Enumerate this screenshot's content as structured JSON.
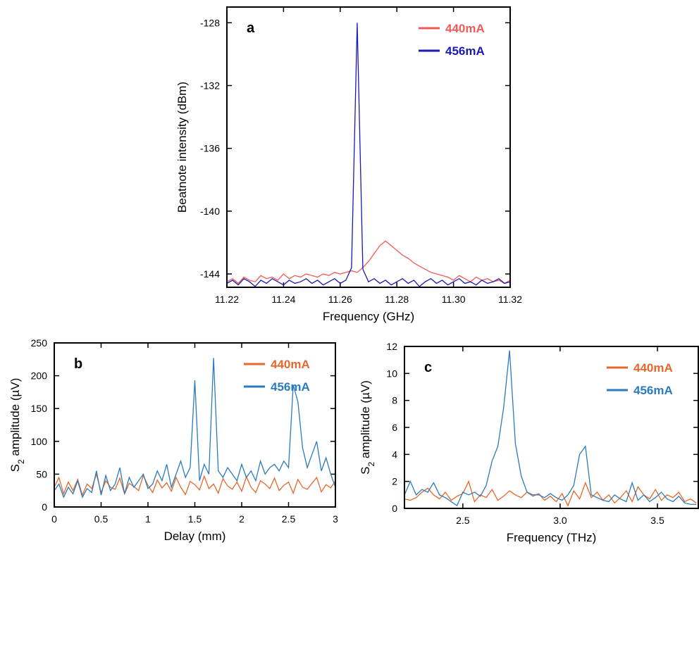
{
  "chart_data": [
    {
      "type": "line",
      "annotation": "a",
      "xlabel": "Frequency (GHz)",
      "ylabel": "Beatnote intensity (dBm)",
      "xlim": [
        11.22,
        11.32
      ],
      "ylim": [
        -144.85,
        -127
      ],
      "xticks": [
        11.22,
        11.24,
        11.26,
        11.28,
        {
          "value": 11.3,
          "label": "11.30"
        },
        11.32
      ],
      "yticks": [
        -128,
        -132,
        -136,
        -140,
        -144
      ],
      "x": [
        11.22,
        11.222,
        11.224,
        11.226,
        11.228,
        11.23,
        11.232,
        11.234,
        11.236,
        11.238,
        11.24,
        11.242,
        11.244,
        11.246,
        11.248,
        11.25,
        11.252,
        11.254,
        11.256,
        11.258,
        11.26,
        11.262,
        11.264,
        11.266,
        11.268,
        11.27,
        11.272,
        11.274,
        11.276,
        11.278,
        11.28,
        11.282,
        11.284,
        11.286,
        11.288,
        11.29,
        11.292,
        11.294,
        11.296,
        11.298,
        11.3,
        11.302,
        11.304,
        11.306,
        11.308,
        11.31,
        11.312,
        11.314,
        11.316,
        11.318,
        11.32
      ],
      "series": [
        {
          "name": "440mA",
          "color": "#f25a5a",
          "values": [
            -144.5,
            -144.3,
            -144.6,
            -144.2,
            -144.4,
            -144.5,
            -144.1,
            -144.3,
            -144.2,
            -144.4,
            -144.0,
            -144.3,
            -144.1,
            -144.2,
            -144.0,
            -144.1,
            -144.2,
            -144.0,
            -144.1,
            -143.9,
            -144.0,
            -143.9,
            -143.8,
            -143.9,
            -143.6,
            -143.2,
            -142.7,
            -142.2,
            -141.9,
            -142.2,
            -142.5,
            -142.8,
            -143.0,
            -143.3,
            -143.5,
            -143.7,
            -143.9,
            -144.0,
            -144.1,
            -144.2,
            -144.4,
            -144.1,
            -144.3,
            -144.5,
            -144.2,
            -144.4,
            -144.3,
            -144.5,
            -144.4,
            -144.6,
            -144.4
          ]
        },
        {
          "name": "456mA",
          "color": "#1a1ab0",
          "values": [
            -144.6,
            -144.4,
            -144.7,
            -144.3,
            -144.5,
            -144.8,
            -144.4,
            -144.6,
            -144.3,
            -144.5,
            -144.7,
            -144.4,
            -144.6,
            -144.5,
            -144.3,
            -144.6,
            -144.4,
            -144.7,
            -144.5,
            -144.3,
            -144.6,
            -144.4,
            -143.6,
            -128,
            -143.7,
            -144.5,
            -144.3,
            -144.6,
            -144.4,
            -144.7,
            -144.5,
            -144.3,
            -144.6,
            -144.4,
            -144.8,
            -144.5,
            -144.3,
            -144.6,
            -144.4,
            -144.7,
            -144.5,
            -144.3,
            -144.6,
            -144.5,
            -144.7,
            -144.4,
            -144.6,
            -144.5,
            -144.3,
            -144.6,
            -144.5
          ]
        }
      ]
    },
    {
      "type": "line",
      "annotation": "b",
      "xlabel": "Delay (mm)",
      "ylabel": [
        "S",
        "2",
        " amplitude (µV)"
      ],
      "xlim": [
        0,
        3
      ],
      "ylim": [
        0,
        250
      ],
      "xticks": [
        0,
        0.5,
        1,
        1.5,
        2,
        2.5,
        3
      ],
      "yticks": [
        0,
        50,
        100,
        150,
        200,
        250
      ],
      "x": [
        0,
        0.05,
        0.1,
        0.15,
        0.2,
        0.25,
        0.3,
        0.35,
        0.4,
        0.45,
        0.5,
        0.55,
        0.6,
        0.65,
        0.7,
        0.75,
        0.8,
        0.85,
        0.9,
        0.95,
        1,
        1.05,
        1.1,
        1.15,
        1.2,
        1.25,
        1.3,
        1.35,
        1.4,
        1.45,
        1.5,
        1.55,
        1.6,
        1.65,
        1.7,
        1.75,
        1.8,
        1.85,
        1.9,
        1.95,
        2,
        2.05,
        2.1,
        2.15,
        2.2,
        2.25,
        2.3,
        2.35,
        2.4,
        2.45,
        2.5,
        2.55,
        2.6,
        2.65,
        2.7,
        2.75,
        2.8,
        2.85,
        2.9,
        2.95,
        3
      ],
      "series": [
        {
          "name": "440mA",
          "color": "#e8672a",
          "values": [
            30,
            45,
            20,
            38,
            25,
            42,
            18,
            35,
            28,
            50,
            22,
            40,
            30,
            27,
            44,
            20,
            36,
            31,
            25,
            48,
            33,
            22,
            41,
            29,
            37,
            24,
            45,
            30,
            19,
            39,
            34,
            26,
            47,
            28,
            35,
            21,
            43,
            32,
            27,
            38,
            24,
            46,
            30,
            22,
            40,
            35,
            28,
            44,
            25,
            33,
            38,
            21,
            42,
            30,
            27,
            36,
            45,
            23,
            34,
            29,
            40
          ]
        },
        {
          "name": "456mA",
          "color": "#2b7bbd",
          "values": [
            25,
            35,
            15,
            30,
            20,
            40,
            15,
            28,
            22,
            55,
            18,
            48,
            25,
            35,
            60,
            20,
            45,
            30,
            40,
            50,
            28,
            35,
            55,
            40,
            65,
            30,
            50,
            70,
            45,
            60,
            193,
            40,
            65,
            50,
            227,
            55,
            45,
            60,
            50,
            40,
            65,
            45,
            55,
            40,
            70,
            50,
            60,
            65,
            55,
            70,
            60,
            186,
            160,
            90,
            60,
            80,
            100,
            55,
            75,
            50,
            30
          ]
        }
      ]
    },
    {
      "type": "line",
      "annotation": "c",
      "xlabel": "Frequency (THz)",
      "ylabel": [
        "S",
        "2",
        " amplitude (µV)"
      ],
      "xlim": [
        2.2,
        3.71
      ],
      "ylim": [
        0,
        12
      ],
      "xticks": [
        2.5,
        {
          "value": 3,
          "label": "3.0"
        },
        3.5
      ],
      "yticks": [
        0,
        2,
        4,
        6,
        8,
        10,
        12
      ],
      "x": [
        2.2,
        2.23,
        2.26,
        2.29,
        2.32,
        2.35,
        2.38,
        2.41,
        2.44,
        2.47,
        2.5,
        2.53,
        2.56,
        2.59,
        2.62,
        2.65,
        2.68,
        2.71,
        2.74,
        2.77,
        2.8,
        2.83,
        2.86,
        2.89,
        2.92,
        2.95,
        2.98,
        3.01,
        3.04,
        3.07,
        3.1,
        3.13,
        3.16,
        3.19,
        3.22,
        3.25,
        3.28,
        3.31,
        3.34,
        3.37,
        3.4,
        3.43,
        3.46,
        3.49,
        3.52,
        3.55,
        3.58,
        3.61,
        3.64,
        3.67,
        3.7
      ],
      "series": [
        {
          "name": "440mA",
          "color": "#e8672a",
          "values": [
            0.7,
            0.6,
            0.8,
            1.2,
            1.5,
            1.0,
            0.7,
            1.2,
            0.6,
            0.9,
            1.1,
            2.0,
            0.5,
            1.0,
            0.8,
            1.4,
            0.6,
            0.9,
            1.3,
            1.0,
            0.8,
            1.2,
            0.9,
            1.1,
            0.6,
            0.9,
            0.5,
            1.1,
            0.2,
            1.3,
            0.7,
            1.9,
            0.8,
            1.2,
            0.6,
            1.0,
            0.4,
            0.8,
            1.3,
            0.5,
            1.6,
            1.0,
            0.7,
            1.4,
            0.6,
            1.0,
            0.8,
            1.2,
            0.5,
            0.7,
            0.4
          ]
        },
        {
          "name": "456mA",
          "color": "#2b7bbd",
          "values": [
            1.0,
            2.0,
            1.0,
            1.4,
            1.2,
            1.9,
            1.0,
            0.8,
            0.5,
            0.2,
            1.2,
            1.0,
            1.2,
            0.9,
            1.7,
            3.5,
            4.6,
            7.5,
            11.7,
            4.8,
            2.4,
            1.2,
            1.0,
            1.0,
            0.8,
            1.1,
            0.8,
            0.6,
            1.0,
            1.7,
            4.0,
            4.6,
            1.0,
            0.8,
            0.6,
            0.5,
            1.0,
            0.7,
            0.5,
            1.9,
            0.6,
            1.0,
            0.5,
            0.8,
            1.2,
            0.7,
            0.5,
            0.9,
            0.4,
            0.3,
            0.3
          ]
        }
      ]
    }
  ]
}
